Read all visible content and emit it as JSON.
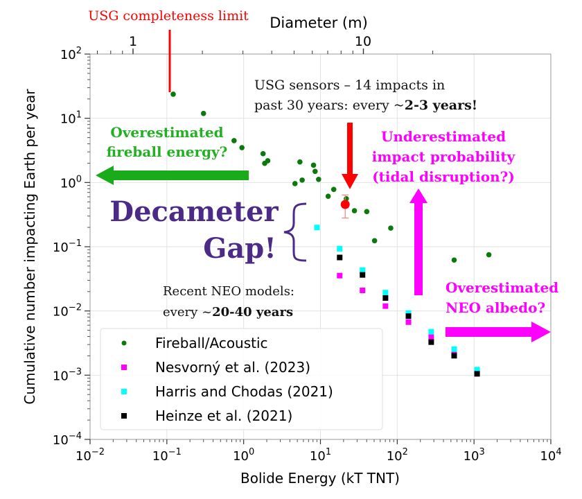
{
  "chart_data": {
    "type": "scatter",
    "xscale": "log",
    "yscale": "log",
    "xlim": [
      0.01,
      10000
    ],
    "ylim": [
      0.0001,
      100
    ],
    "grid": true,
    "xlabel": "Bolide Energy (kT TNT)",
    "ylabel": "Cumulative number impacting Earth per year",
    "x_top_label": "Diameter (m)",
    "x_top_ticks": [
      "1",
      "10"
    ],
    "x_tick_exponents": [
      "-2",
      "-1",
      "0",
      "1",
      "2",
      "3",
      "4"
    ],
    "y_tick_exponents": [
      "-4",
      "-3",
      "-2",
      "-1",
      "0",
      "1",
      "2"
    ],
    "tick_base": "10",
    "legend_position": "lower-left",
    "series": [
      {
        "name": "Fireball/Acoustic",
        "marker": "circle",
        "color": "#0a7a0a",
        "x": [
          0.121,
          0.3,
          0.75,
          0.95,
          1.79,
          1.88,
          2.06,
          5.4,
          4.66,
          5.78,
          8.13,
          8.52,
          9.46,
          12.6,
          14.9,
          21.7,
          27.7,
          40.1,
          50.7,
          82.3,
          551,
          1560
        ],
        "y": [
          23.7,
          11.9,
          4.48,
          3.49,
          2.81,
          1.99,
          2.18,
          2.09,
          0.96,
          1.09,
          1.86,
          1.49,
          1.12,
          0.61,
          0.78,
          0.56,
          0.364,
          0.352,
          0.124,
          0.195,
          0.062,
          0.075
        ]
      },
      {
        "name": "Nesvorný et al. (2023)",
        "marker": "square",
        "color": "#ff00ff",
        "x": [
          17.8,
          35.3,
          70.3,
          140,
          277,
          551,
          1096
        ],
        "y": [
          0.0355,
          0.0209,
          0.0119,
          0.0067,
          0.0039,
          0.0022,
          0.0011
        ]
      },
      {
        "name": "Harris and Chodas (2021)",
        "marker": "square",
        "color": "#00ffff",
        "x": [
          9.0,
          17.8,
          35.3,
          70.3,
          140,
          277,
          551,
          1096
        ],
        "y": [
          0.199,
          0.093,
          0.0434,
          0.0193,
          0.0093,
          0.00475,
          0.00255,
          0.00122
        ]
      },
      {
        "name": "Heinze et al. (2021)",
        "marker": "square",
        "color": "#000000",
        "x": [
          17.8,
          35.3,
          70.3,
          140,
          277,
          551,
          1096
        ],
        "y": [
          0.068,
          0.0364,
          0.0159,
          0.0083,
          0.00327,
          0.00201,
          0.00105
        ]
      }
    ],
    "usg_point": {
      "x": 21,
      "y": 0.455,
      "y_err_low": 0.28,
      "y_err_high": 0.64,
      "color": "#ff0000"
    },
    "annotations": {
      "usg_limit": "USG completeness limit",
      "usg_sensors_line1": "USG sensors – 14 impacts in",
      "usg_sensors_line2_prefix": "past 30 years: every ~",
      "usg_sensors_line2_bold": "2-3 years!",
      "fireball_line1": "Overestimated",
      "fireball_line2": "fireball energy?",
      "tidal_line1": "Underestimated",
      "tidal_line2": "impact probability",
      "tidal_line3": "(tidal disruption?)",
      "albedo_line1": "Overestimated",
      "albedo_line2": "NEO albedo?",
      "gap_line1": "Decameter",
      "gap_line2": "Gap!",
      "neo_line1": "Recent NEO models:",
      "neo_line2_prefix": "every ~",
      "neo_line2_bold": "20-40 years"
    },
    "colors": {
      "usg": "#ff0000",
      "fireball_arrow": "#1aab1a",
      "magenta": "#ff00ff",
      "gap": "#4b2a88"
    }
  }
}
